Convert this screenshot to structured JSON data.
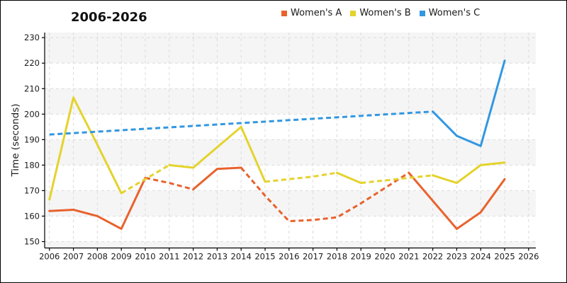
{
  "chart_data": {
    "type": "line",
    "title": "2006-2026",
    "xlabel": "",
    "ylabel": "Time (seconds)",
    "x_ticks": [
      2006,
      2007,
      2008,
      2009,
      2010,
      2011,
      2012,
      2013,
      2014,
      2015,
      2016,
      2017,
      2018,
      2019,
      2020,
      2021,
      2022,
      2023,
      2024,
      2025,
      2026
    ],
    "y_ticks": [
      150,
      160,
      170,
      180,
      190,
      200,
      210,
      220,
      230
    ],
    "xlim": [
      2005.8,
      2026.3
    ],
    "ylim": [
      147.5,
      232
    ],
    "legend_position": "top-center",
    "grid": {
      "style": "dashed",
      "color": "#dcdcdc",
      "horizontal": true,
      "vertical": true
    },
    "plot_bands": {
      "color": "#f5f5f6",
      "gray_value_ranges": [
        [
          220,
          232
        ],
        [
          200,
          210
        ],
        [
          180,
          190
        ],
        [
          160,
          170
        ],
        [
          147.5,
          150
        ]
      ]
    },
    "series": [
      {
        "name": "Women's A",
        "color": "#e8622c",
        "segments": [
          {
            "style": "solid",
            "points": [
              [
                2006,
                162
              ],
              [
                2007,
                162.5
              ],
              [
                2008,
                160
              ],
              [
                2009,
                155
              ],
              [
                2010,
                175
              ]
            ]
          },
          {
            "style": "dashed",
            "points": [
              [
                2010,
                175
              ],
              [
                2011,
                173
              ],
              [
                2012,
                170.5
              ]
            ]
          },
          {
            "style": "solid",
            "points": [
              [
                2012,
                170.5
              ],
              [
                2013,
                178.5
              ],
              [
                2014,
                179
              ]
            ]
          },
          {
            "style": "dashed",
            "points": [
              [
                2014,
                179
              ],
              [
                2015,
                168
              ],
              [
                2016,
                158
              ],
              [
                2017,
                158.5
              ],
              [
                2018,
                159.5
              ],
              [
                2019,
                165
              ],
              [
                2020,
                171
              ],
              [
                2021,
                177
              ]
            ]
          },
          {
            "style": "solid",
            "points": [
              [
                2021,
                177
              ],
              [
                2022,
                166
              ],
              [
                2023,
                155
              ],
              [
                2024,
                161.5
              ],
              [
                2025,
                174.5
              ]
            ]
          }
        ]
      },
      {
        "name": "Women's B",
        "color": "#e4d32c",
        "segments": [
          {
            "style": "solid",
            "points": [
              [
                2006,
                166.5
              ],
              [
                2007,
                206.5
              ],
              [
                2008,
                188
              ],
              [
                2009,
                169
              ]
            ]
          },
          {
            "style": "dashed",
            "points": [
              [
                2009,
                169
              ],
              [
                2010,
                174.5
              ],
              [
                2011,
                180
              ]
            ]
          },
          {
            "style": "solid",
            "points": [
              [
                2011,
                180
              ],
              [
                2012,
                179
              ],
              [
                2013,
                187
              ],
              [
                2014,
                195
              ],
              [
                2015,
                173.5
              ]
            ]
          },
          {
            "style": "dashed",
            "points": [
              [
                2015,
                173.5
              ],
              [
                2016,
                174.5
              ],
              [
                2017,
                175.5
              ],
              [
                2018,
                177
              ]
            ]
          },
          {
            "style": "solid",
            "points": [
              [
                2018,
                177
              ],
              [
                2019,
                173
              ]
            ]
          },
          {
            "style": "dashed",
            "points": [
              [
                2019,
                173
              ],
              [
                2020,
                174
              ],
              [
                2021,
                175
              ],
              [
                2022,
                176
              ]
            ]
          },
          {
            "style": "solid",
            "points": [
              [
                2022,
                176
              ],
              [
                2023,
                173
              ],
              [
                2024,
                180
              ],
              [
                2025,
                181
              ]
            ]
          }
        ]
      },
      {
        "name": "Women's C",
        "color": "#3297e0",
        "segments": [
          {
            "style": "dashed",
            "points": [
              [
                2006,
                192
              ],
              [
                2022,
                201
              ]
            ]
          },
          {
            "style": "solid",
            "points": [
              [
                2022,
                201
              ],
              [
                2023,
                191.5
              ],
              [
                2024,
                187.5
              ],
              [
                2025,
                221
              ]
            ]
          }
        ]
      }
    ]
  }
}
